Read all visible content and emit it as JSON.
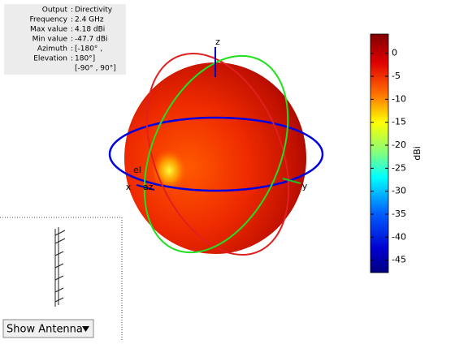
{
  "info": {
    "separator": ":",
    "rows": [
      {
        "label": "Output",
        "value": "Directivity"
      },
      {
        "label": "Frequency",
        "value": "2.4 GHz"
      },
      {
        "label": "Max value",
        "value": "4.18 dBi"
      },
      {
        "label": "Min value",
        "value": "-47.7 dBi"
      },
      {
        "label": "Azimuth",
        "value": "[-180° ,"
      },
      {
        "label": "Elevation",
        "value": "180°]"
      },
      {
        "value": "[-90° , 90°]"
      }
    ]
  },
  "axes": {
    "x": "x",
    "y": "y",
    "z": "z",
    "az": "az",
    "el": "el"
  },
  "colorbar": {
    "label": "dBi",
    "clim": [
      -47.7,
      4.18
    ],
    "ticks": [
      0,
      -5,
      -10,
      -15,
      -20,
      -25,
      -30,
      -35,
      -40,
      -45
    ]
  },
  "control": {
    "dropdown": "Show Antenna"
  }
}
